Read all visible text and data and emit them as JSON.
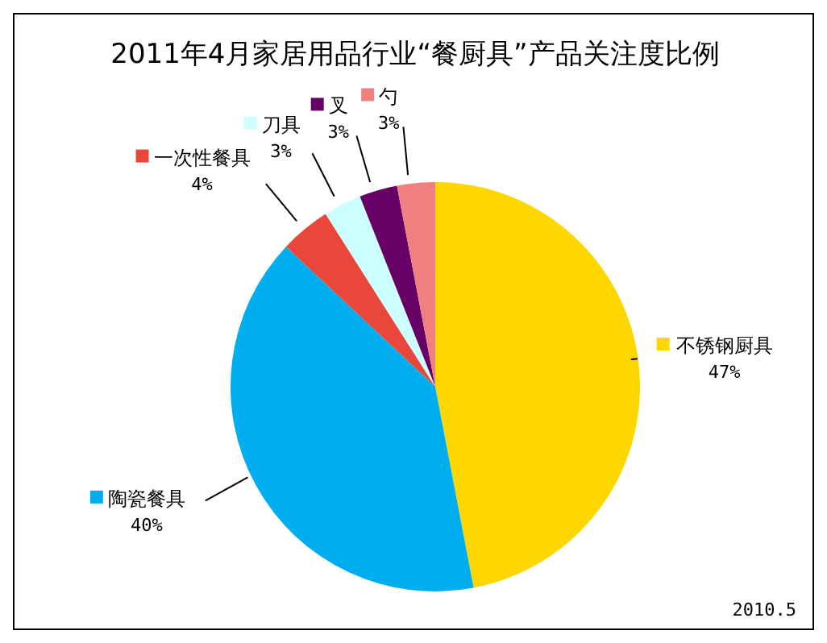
{
  "chart_data": {
    "type": "pie",
    "title": "2011年4月家居用品行业“餐厨具”产品关注度比例",
    "categories": [
      "不锈钢厨具",
      "陶瓷餐具",
      "一次性餐具",
      "刀具",
      "叉",
      "勺"
    ],
    "values": [
      47,
      40,
      4,
      3,
      3,
      3
    ],
    "value_labels": [
      "47%",
      "40%",
      "4%",
      "3%",
      "3%",
      "3%"
    ],
    "colors": [
      "#ffd700",
      "#00aeef",
      "#e8473a",
      "#ccffff",
      "#660066",
      "#f08080"
    ],
    "annotations": [
      "2010.5"
    ],
    "legend": "left"
  }
}
